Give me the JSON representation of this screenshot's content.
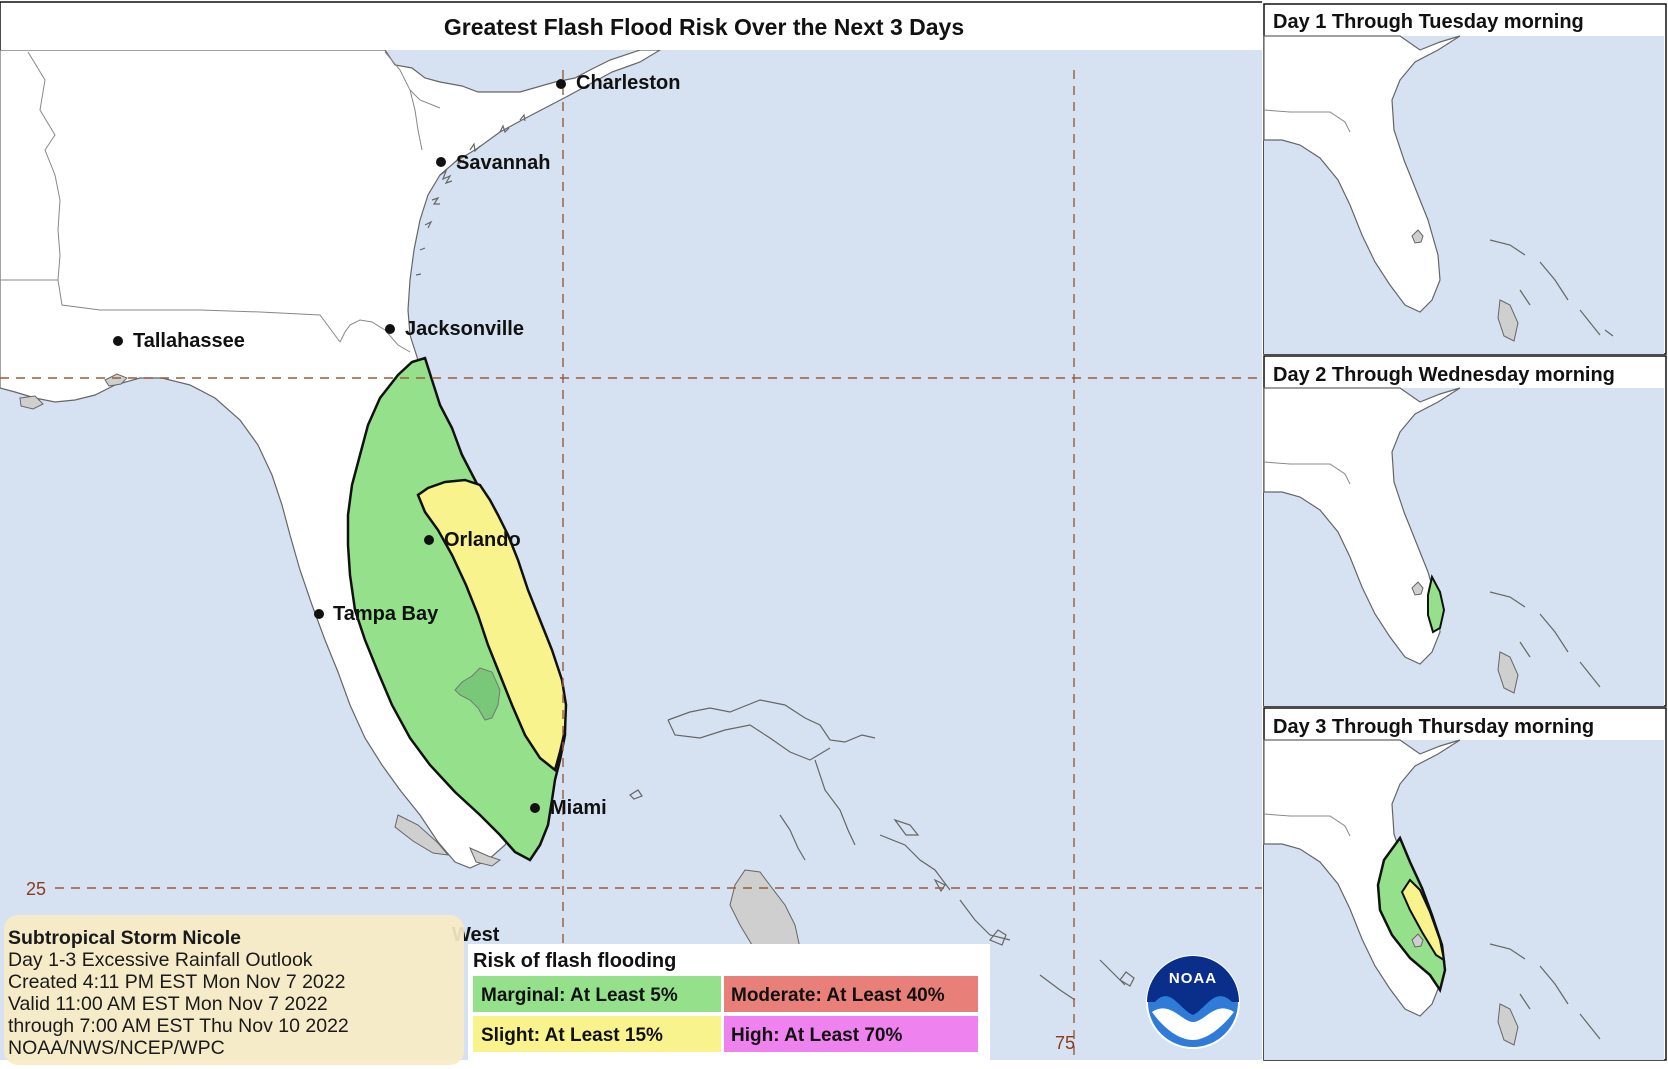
{
  "title": "Greatest Flash Flood Risk Over the Next 3 Days",
  "cities": [
    {
      "name": "Charleston"
    },
    {
      "name": "Savannah"
    },
    {
      "name": "Jacksonville"
    },
    {
      "name": "Tallahassee"
    },
    {
      "name": "Orlando"
    },
    {
      "name": "Tampa Bay"
    },
    {
      "name": "Miami"
    },
    {
      "name": "West"
    }
  ],
  "grid_labels": {
    "lat": "25",
    "lon": "75"
  },
  "insets": [
    {
      "title": "Day 1 Through Tuesday morning"
    },
    {
      "title": "Day 2 Through Wednesday morning"
    },
    {
      "title": "Day 3 Through Thursday morning"
    }
  ],
  "info": {
    "line1": "Subtropical Storm Nicole",
    "line2": "Day 1-3 Excessive Rainfall Outlook",
    "line3": "Created 4:11 PM EST Mon Nov 7 2022",
    "line4": "Valid 11:00 AM EST Mon Nov 7 2022",
    "line5": "through 7:00 AM EST Thu Nov 10 2022",
    "line6": "NOAA/NWS/NCEP/WPC"
  },
  "legend": {
    "title": "Risk of flash flooding",
    "items": [
      {
        "label": "Marginal: At Least 5%",
        "color": "#95e18b"
      },
      {
        "label": "Moderate: At Least 40%",
        "color": "#e88079"
      },
      {
        "label": "Slight: At Least 15%",
        "color": "#f8f38d"
      },
      {
        "label": "High: At Least 70%",
        "color": "#ee82ee"
      }
    ]
  },
  "logo": {
    "text": "NOAA"
  },
  "colors": {
    "water": "#d6e2f2",
    "marginal": "#95e18b",
    "slight": "#f8f38d",
    "info_bg": "#f8ebc4"
  }
}
